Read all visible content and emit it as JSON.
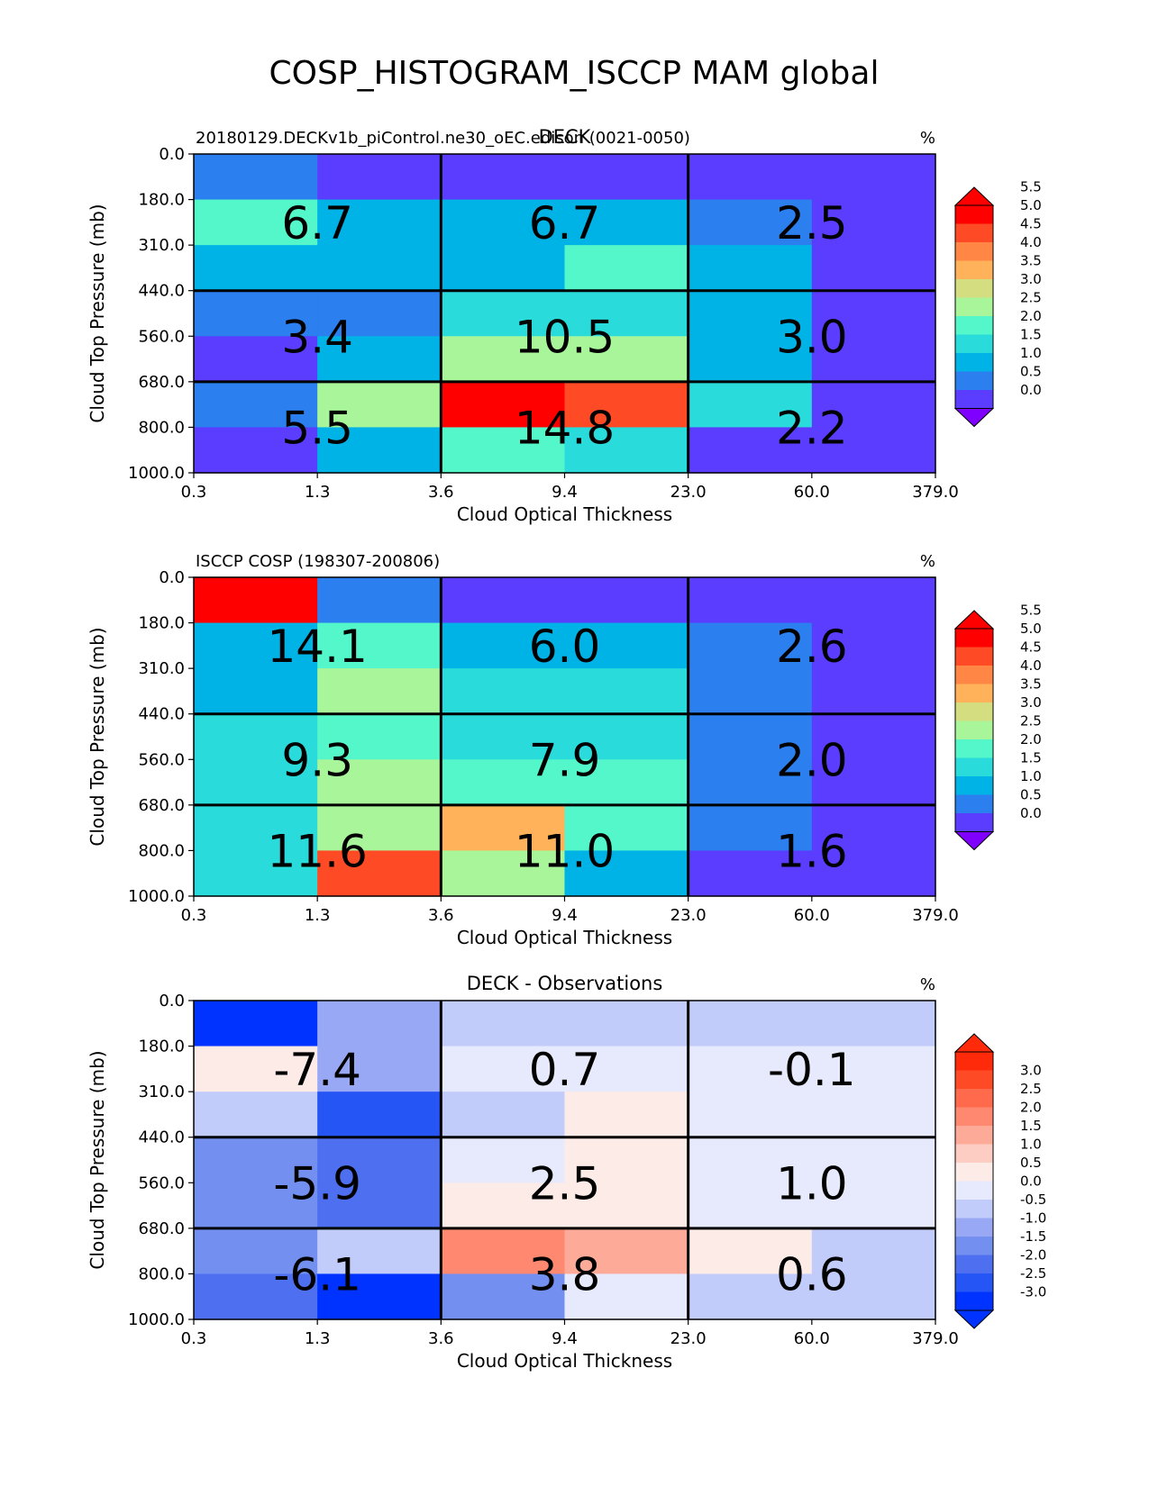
{
  "figure": {
    "title": "COSP_HISTOGRAM_ISCCP MAM global"
  },
  "chart_data": [
    {
      "type": "heatmap",
      "title": "DECK",
      "subtitle_left": "20180129.DECKv1b_piControl.ne30_oEC.edison (0021-0050)",
      "units": "%",
      "xlabel": "Cloud Optical Thickness",
      "ylabel": "Cloud Top Pressure (mb)",
      "x_ticks": [
        "0.3",
        "1.3",
        "3.6",
        "9.4",
        "23.0",
        "60.0",
        "379.0"
      ],
      "y_ticks": [
        "0.0",
        "180.0",
        "310.0",
        "440.0",
        "560.0",
        "680.0",
        "800.0",
        "1000.0"
      ],
      "rows_top_to_bottom": [
        [
          0.8,
          0.3,
          0.3,
          0.3,
          0.3,
          0.3
        ],
        [
          2.1,
          1.2,
          1.2,
          1.2,
          0.8,
          0.3
        ],
        [
          1.2,
          1.2,
          1.2,
          2.1,
          1.2,
          0.3
        ],
        [
          0.8,
          0.8,
          1.8,
          1.8,
          1.2,
          0.3
        ],
        [
          0.3,
          1.2,
          2.8,
          2.8,
          1.2,
          0.3
        ],
        [
          0.8,
          2.8,
          5.8,
          4.8,
          1.8,
          0.3
        ],
        [
          0.3,
          1.2,
          2.1,
          1.8,
          0.3,
          0.3
        ]
      ],
      "box_totals": [
        [
          "6.7",
          "6.7",
          "2.5"
        ],
        [
          "3.4",
          "10.5",
          "3.0"
        ],
        [
          "5.5",
          "14.8",
          "2.2"
        ]
      ],
      "colorbar": {
        "ticks": [
          "0.0",
          "0.5",
          "1.0",
          "1.5",
          "2.0",
          "2.5",
          "3.0",
          "3.5",
          "4.0",
          "4.5",
          "5.0",
          "5.5"
        ],
        "colors": [
          "#5a3dff",
          "#2b7fef",
          "#00b3e6",
          "#29dbdb",
          "#54f7c9",
          "#a8f59a",
          "#d4dd80",
          "#ffb259",
          "#ff8644",
          "#ff4a26",
          "#ff0000"
        ],
        "under_color": "#8000ff",
        "over_color": "#ff0000"
      }
    },
    {
      "type": "heatmap",
      "title": "",
      "subtitle_left": "ISCCP COSP (198307-200806)",
      "units": "%",
      "xlabel": "Cloud Optical Thickness",
      "ylabel": "Cloud Top Pressure (mb)",
      "x_ticks": [
        "0.3",
        "1.3",
        "3.6",
        "9.4",
        "23.0",
        "60.0",
        "379.0"
      ],
      "y_ticks": [
        "0.0",
        "180.0",
        "310.0",
        "440.0",
        "560.0",
        "680.0",
        "800.0",
        "1000.0"
      ],
      "rows_top_to_bottom": [
        [
          5.8,
          0.8,
          0.3,
          0.3,
          0.3,
          0.3
        ],
        [
          1.2,
          2.1,
          1.2,
          1.2,
          0.8,
          0.3
        ],
        [
          1.2,
          2.8,
          1.8,
          1.8,
          0.8,
          0.3
        ],
        [
          1.8,
          2.3,
          1.8,
          1.8,
          0.8,
          0.3
        ],
        [
          1.8,
          2.8,
          2.1,
          2.1,
          0.8,
          0.3
        ],
        [
          1.8,
          2.8,
          3.8,
          2.3,
          0.8,
          0.3
        ],
        [
          1.8,
          4.8,
          2.8,
          1.2,
          0.3,
          0.3
        ]
      ],
      "box_totals": [
        [
          "14.1",
          "6.0",
          "2.6"
        ],
        [
          "9.3",
          "7.9",
          "2.0"
        ],
        [
          "11.6",
          "11.0",
          "1.6"
        ]
      ],
      "colorbar": {
        "ticks": [
          "0.0",
          "0.5",
          "1.0",
          "1.5",
          "2.0",
          "2.5",
          "3.0",
          "3.5",
          "4.0",
          "4.5",
          "5.0",
          "5.5"
        ],
        "colors": [
          "#5a3dff",
          "#2b7fef",
          "#00b3e6",
          "#29dbdb",
          "#54f7c9",
          "#a8f59a",
          "#d4dd80",
          "#ffb259",
          "#ff8644",
          "#ff4a26",
          "#ff0000"
        ],
        "under_color": "#8000ff",
        "over_color": "#ff0000"
      }
    },
    {
      "type": "heatmap",
      "title": "DECK - Observations",
      "subtitle_left": "",
      "units": "%",
      "xlabel": "Cloud Optical Thickness",
      "ylabel": "Cloud Top Pressure (mb)",
      "x_ticks": [
        "0.3",
        "1.3",
        "3.6",
        "9.4",
        "23.0",
        "60.0",
        "379.0"
      ],
      "y_ticks": [
        "0.0",
        "180.0",
        "310.0",
        "440.0",
        "560.0",
        "680.0",
        "800.0",
        "1000.0"
      ],
      "rows_top_to_bottom": [
        [
          -3.2,
          -0.7,
          -0.2,
          -0.2,
          -0.2,
          -0.2
        ],
        [
          0.7,
          -0.7,
          0.2,
          0.2,
          0.2,
          0.2
        ],
        [
          -0.2,
          -2.2,
          -0.2,
          0.7,
          0.2,
          0.2
        ],
        [
          -1.2,
          -1.7,
          0.2,
          0.7,
          0.2,
          0.2
        ],
        [
          -1.2,
          -1.7,
          0.7,
          0.7,
          0.2,
          0.2
        ],
        [
          -1.2,
          -0.2,
          2.2,
          1.7,
          0.7,
          -0.2
        ],
        [
          -1.7,
          -3.2,
          -1.2,
          0.2,
          -0.2,
          -0.2
        ]
      ],
      "box_totals": [
        [
          "-7.4",
          "0.7",
          "-0.1"
        ],
        [
          "-5.9",
          "2.5",
          "1.0"
        ],
        [
          "-6.1",
          "3.8",
          "0.6"
        ]
      ],
      "colorbar": {
        "ticks": [
          "-3.0",
          "-2.5",
          "-2.0",
          "-1.5",
          "-1.0",
          "-0.5",
          "0.0",
          "0.5",
          "1.0",
          "1.5",
          "2.0",
          "2.5",
          "3.0"
        ],
        "colors": [
          "#0033ff",
          "#2655f5",
          "#4d6ff0",
          "#7390f0",
          "#99a8f5",
          "#c2ccfa",
          "#e6eafc",
          "#fdebe8",
          "#fdcdc4",
          "#fdaa99",
          "#ff8870",
          "#ff6a4d",
          "#ff4a26",
          "#ff2a0a"
        ],
        "under_color": "#0033ff",
        "over_color": "#ff2a0a"
      }
    }
  ]
}
